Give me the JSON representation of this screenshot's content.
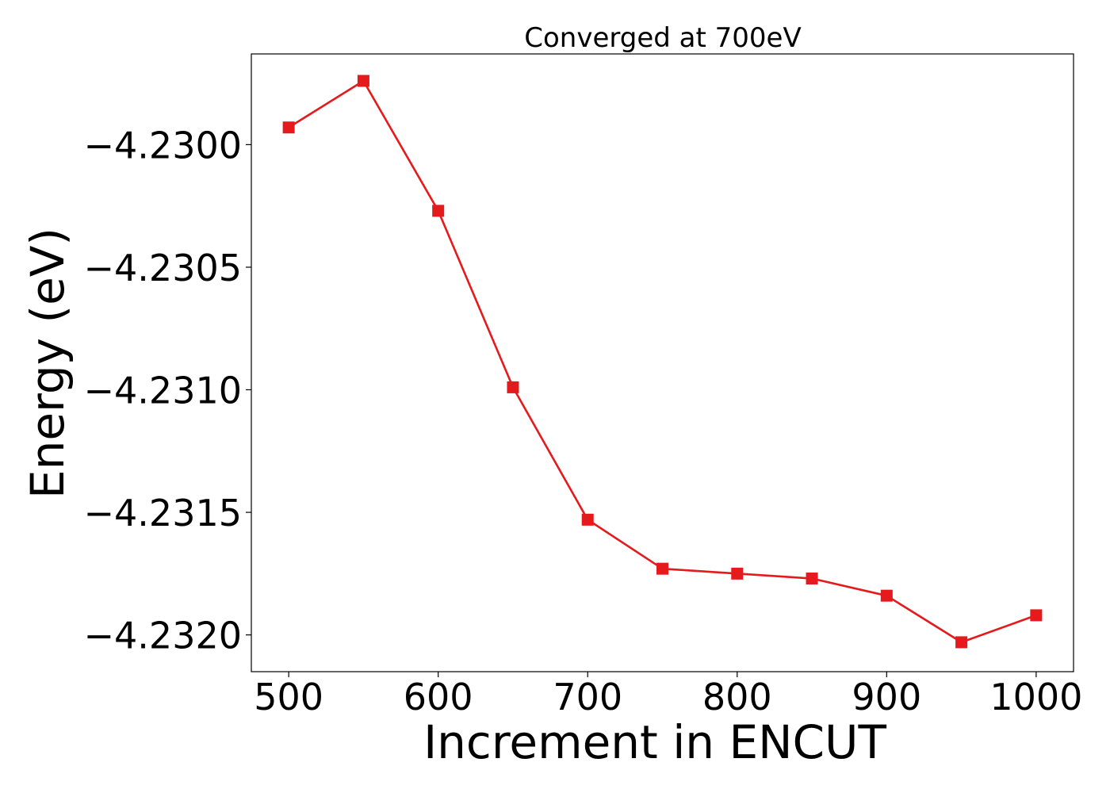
{
  "chart_data": {
    "type": "line",
    "title": "Converged at 700eV",
    "xlabel": "Increment in ENCUT",
    "ylabel": "Energy (eV)",
    "x": [
      500,
      550,
      600,
      650,
      700,
      750,
      800,
      850,
      900,
      950,
      1000
    ],
    "series": [
      {
        "values": [
          -4.22993,
          -4.22974,
          -4.23027,
          -4.23099,
          -4.23153,
          -4.23173,
          -4.23175,
          -4.23177,
          -4.23184,
          -4.23203,
          -4.23192
        ],
        "color": "#e41a1c",
        "marker": "square"
      }
    ],
    "xlim": [
      475,
      1025
    ],
    "ylim": [
      -4.23215,
      -4.22963
    ],
    "xticks": [
      500,
      600,
      700,
      800,
      900,
      1000
    ],
    "xtick_labels": [
      "500",
      "600",
      "700",
      "800",
      "900",
      "1000"
    ],
    "yticks": [
      -4.23,
      -4.2305,
      -4.231,
      -4.2315,
      -4.232
    ],
    "ytick_labels": [
      "−4.2300",
      "−4.2305",
      "−4.2310",
      "−4.2315",
      "−4.2320"
    ],
    "grid": false,
    "legend": "none"
  }
}
